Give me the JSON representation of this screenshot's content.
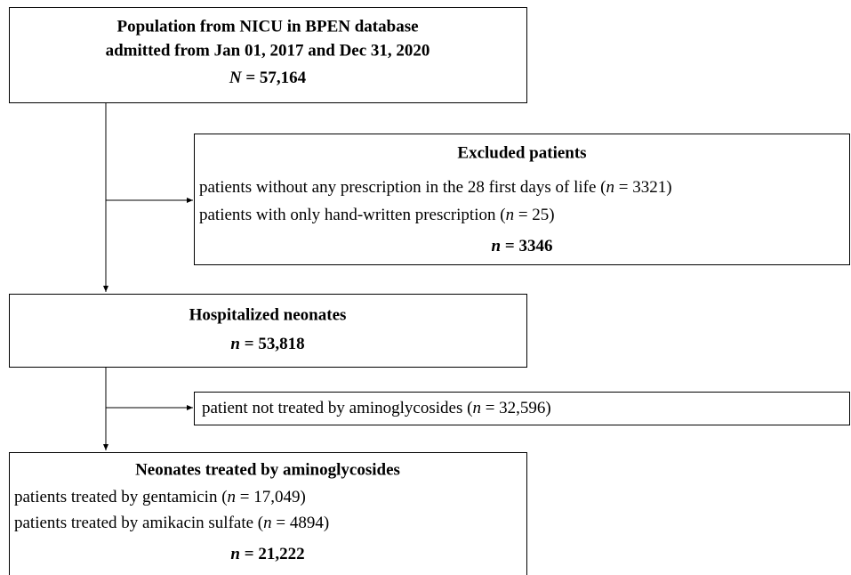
{
  "population": {
    "title_line1": "Population from NICU in BPEN database",
    "title_line2": "admitted from Jan 01, 2017 and Dec 31, 2020",
    "count_symbol": "N",
    "count_value": " = 57,164"
  },
  "excluded": {
    "title": "Excluded patients",
    "items": [
      {
        "text": "patients without any prescription in the 28 first days of life (",
        "symbol": "n",
        "value": " = 3321)"
      },
      {
        "text": "patients with only hand-written prescription (",
        "symbol": "n",
        "value": " = 25)"
      }
    ],
    "count_symbol": "n",
    "count_value": " = 3346"
  },
  "hospitalized": {
    "title": "Hospitalized neonates",
    "count_symbol": "n",
    "count_value": " = 53,818"
  },
  "not_treated": {
    "text": "patient not treated by aminoglycosides (",
    "symbol": "n",
    "value": " = 32,596)"
  },
  "treated": {
    "title": "Neonates treated by aminoglycosides",
    "items": [
      {
        "text": "patients treated by gentamicin (",
        "symbol": "n",
        "value": " = 17,049)"
      },
      {
        "text": "patients treated by amikacin sulfate (",
        "symbol": "n",
        "value": " = 4894)"
      }
    ],
    "count_symbol": "n",
    "count_value": " = 21,222"
  }
}
